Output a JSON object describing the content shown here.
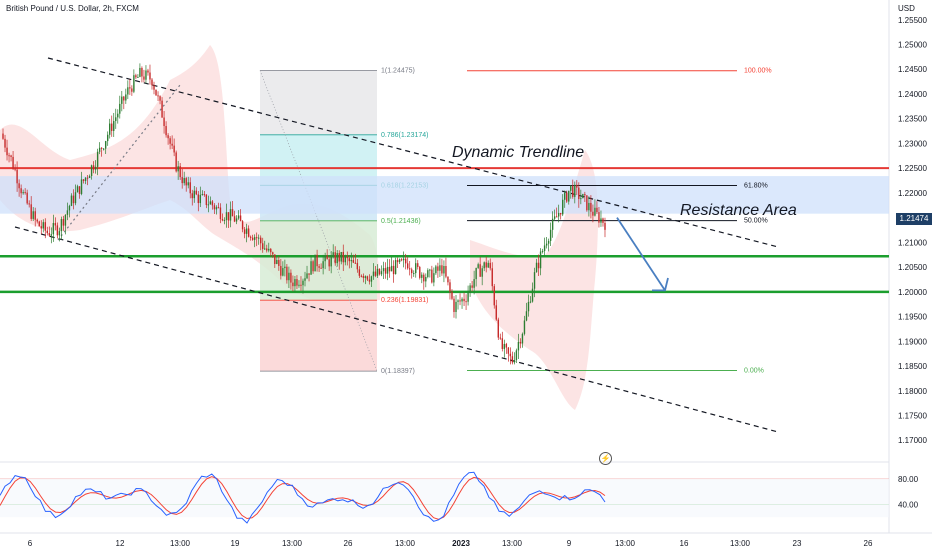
{
  "header": {
    "title": "British Pound / U.S. Dollar, 2h, FXCM",
    "currency": "USD"
  },
  "colors": {
    "up_candle": "#2e7d32",
    "down_candle": "#c62828",
    "resistance_line": "#e53935",
    "support_line": "#1b9e2e",
    "resistance_zone": "#cfe0fb",
    "price_tag_bg": "#1e3f66",
    "stoch_k": "#2962ff",
    "stoch_d": "#f44336"
  },
  "price_axis": {
    "ticks": [
      "1.25500",
      "1.25000",
      "1.24500",
      "1.24000",
      "1.23500",
      "1.23000",
      "1.22500",
      "1.22000",
      "1.21500",
      "1.21000",
      "1.20500",
      "1.20000",
      "1.19500",
      "1.19000",
      "1.18500",
      "1.18000",
      "1.17500",
      "1.17000"
    ],
    "tick_values": [
      1.255,
      1.25,
      1.245,
      1.24,
      1.235,
      1.23,
      1.225,
      1.22,
      1.215,
      1.21,
      1.205,
      1.2,
      1.195,
      1.19,
      1.185,
      1.18,
      1.175,
      1.17
    ],
    "current_price": "1.21474",
    "current_value": 1.21474
  },
  "time_axis": {
    "labels": [
      "6",
      "12",
      "13:00",
      "19",
      "13:00",
      "26",
      "13:00",
      "2023",
      "13:00",
      "9",
      "13:00",
      "16",
      "13:00",
      "23",
      "26"
    ],
    "bold_label": "2023"
  },
  "oscillator_axis": {
    "ticks": [
      "80.00",
      "40.00"
    ],
    "tick_values": [
      80,
      40
    ],
    "range": [
      0,
      100
    ]
  },
  "fib_retracement_left": [
    {
      "label": "1(1.24475)",
      "level": 1.24475,
      "color": "#787b86"
    },
    {
      "label": "0.786(1.23174)",
      "level": 1.23174,
      "color": "#26a69a"
    },
    {
      "label": "0.618(1.22153)",
      "level": 1.22153,
      "color": "#26a69a"
    },
    {
      "label": "0.5(1.21436)",
      "level": 1.21436,
      "color": "#4caf50"
    },
    {
      "label": "0.236(1.19831)",
      "level": 1.19831,
      "color": "#f44336"
    },
    {
      "label": "0(1.18397)",
      "level": 1.18397,
      "color": "#787b86"
    }
  ],
  "fib_retracement_right": [
    {
      "label": "100.00%",
      "level": 1.2447,
      "color": "#f44336"
    },
    {
      "label": "61.80%",
      "level": 1.2215,
      "color": "#131722"
    },
    {
      "label": "50.00%",
      "level": 1.2144,
      "color": "#131722"
    },
    {
      "label": "0.00%",
      "level": 1.1841,
      "color": "#4caf50"
    }
  ],
  "horizontal_levels": {
    "resistance_red": 1.225,
    "support_green_1": 1.2072,
    "support_green_2": 1.2,
    "resistance_zone": [
      1.2158,
      1.2234
    ]
  },
  "annotations": {
    "dynamic_trendline": "Dynamic Trendline",
    "resistance_area": "Resistance Area"
  },
  "chart_data": {
    "type": "line",
    "title": "British Pound / U.S. Dollar, 2h, FXCM",
    "ylabel": "USD",
    "ylim": [
      1.166,
      1.259
    ],
    "series": [
      {
        "values": [
          1.232,
          1.226,
          1.219,
          1.214,
          1.212,
          1.213,
          1.218,
          1.222,
          1.226,
          1.231,
          1.236,
          1.241,
          1.244,
          1.243,
          1.235,
          1.226,
          1.221,
          1.219,
          1.218,
          1.216,
          1.215,
          1.213,
          1.211,
          1.208,
          1.205,
          1.202,
          1.203,
          1.206,
          1.206,
          1.207,
          1.206,
          1.204,
          1.203,
          1.204,
          1.205,
          1.206,
          1.204,
          1.203,
          1.205,
          1.197,
          1.199,
          1.204,
          1.206,
          1.189,
          1.186,
          1.193,
          1.204,
          1.211,
          1.216,
          1.221,
          1.219,
          1.216,
          1.214
        ]
      }
    ]
  }
}
